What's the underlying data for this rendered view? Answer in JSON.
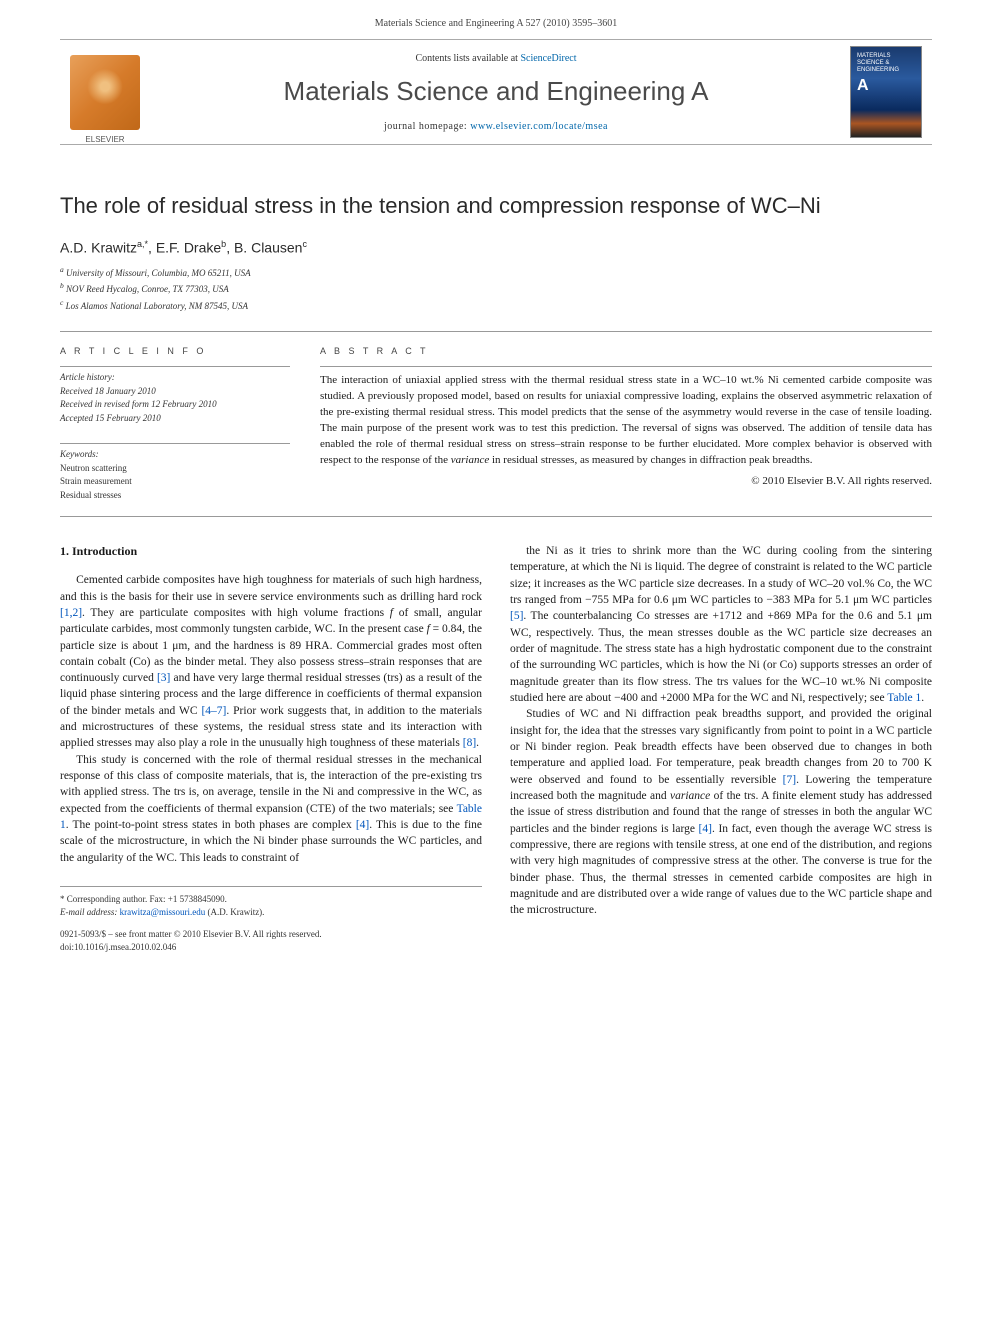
{
  "header": {
    "running_head": "Materials Science and Engineering A 527 (2010) 3595–3601",
    "contents_prefix": "Contents lists available at ",
    "contents_link": "ScienceDirect",
    "journal_name": "Materials Science and Engineering A",
    "homepage_prefix": "journal homepage: ",
    "homepage_url": "www.elsevier.com/locate/msea",
    "publisher_label": "ELSEVIER"
  },
  "article": {
    "title": "The role of residual stress in the tension and compression response of WC–Ni",
    "authors_html": "A.D. Krawitz",
    "author1": "A.D. Krawitz",
    "author1_sup": "a,*",
    "author2": "E.F. Drake",
    "author2_sup": "b",
    "author3": "B. Clausen",
    "author3_sup": "c",
    "affiliations": {
      "a": "University of Missouri, Columbia, MO 65211, USA",
      "b": "NOV Reed Hycalog, Conroe, TX 77303, USA",
      "c": "Los Alamos National Laboratory, NM 87545, USA"
    }
  },
  "info": {
    "heading": "A R T I C L E   I N F O",
    "history_label": "Article history:",
    "received": "Received 18 January 2010",
    "revised": "Received in revised form 12 February 2010",
    "accepted": "Accepted 15 February 2010",
    "keywords_label": "Keywords:",
    "keywords": [
      "Neutron scattering",
      "Strain measurement",
      "Residual stresses"
    ]
  },
  "abstract": {
    "heading": "A B S T R A C T",
    "text": "The interaction of uniaxial applied stress with the thermal residual stress state in a WC–10 wt.% Ni cemented carbide composite was studied. A previously proposed model, based on results for uniaxial compressive loading, explains the observed asymmetric relaxation of the pre-existing thermal residual stress. This model predicts that the sense of the asymmetry would reverse in the case of tensile loading. The main purpose of the present work was to test this prediction. The reversal of signs was observed. The addition of tensile data has enabled the role of thermal residual stress on stress–strain response to be further elucidated. More complex behavior is observed with respect to the response of the variance in residual stresses, as measured by changes in diffraction peak breadths.",
    "copyright": "© 2010 Elsevier B.V. All rights reserved."
  },
  "body": {
    "section1_heading": "1.  Introduction",
    "col1_p1": "Cemented carbide composites have high toughness for materials of such high hardness, and this is the basis for their use in severe service environments such as drilling hard rock [1,2]. They are particulate composites with high volume fractions f of small, angular particulate carbides, most commonly tungsten carbide, WC. In the present case f = 0.84, the particle size is about 1 μm, and the hardness is 89 HRA. Commercial grades most often contain cobalt (Co) as the binder metal. They also possess stress–strain responses that are continuously curved [3] and have very large thermal residual stresses (trs) as a result of the liquid phase sintering process and the large difference in coefficients of thermal expansion of the binder metals and WC [4–7]. Prior work suggests that, in addition to the materials and microstructures of these systems, the residual stress state and its interaction with applied stresses may also play a role in the unusually high toughness of these materials [8].",
    "col1_p2": "This study is concerned with the role of thermal residual stresses in the mechanical response of this class of composite materials, that is, the interaction of the pre-existing trs with applied stress. The trs is, on average, tensile in the Ni and compressive in the WC, as expected from the coefficients of thermal expansion (CTE) of the two materials; see Table 1. The point-to-point stress states in both phases are complex [4]. This is due to the fine scale of the microstructure, in which the Ni binder phase surrounds the WC particles, and the angularity of the WC. This leads to constraint of",
    "col2_p1": "the Ni as it tries to shrink more than the WC during cooling from the sintering temperature, at which the Ni is liquid. The degree of constraint is related to the WC particle size; it increases as the WC particle size decreases. In a study of WC–20 vol.% Co, the WC trs ranged from −755 MPa for 0.6 μm WC particles to −383 MPa for 5.1 μm WC particles [5]. The counterbalancing Co stresses are +1712 and +869 MPa for the 0.6 and 5.1 μm WC, respectively. Thus, the mean stresses double as the WC particle size decreases an order of magnitude. The stress state has a high hydrostatic component due to the constraint of the surrounding WC particles, which is how the Ni (or Co) supports stresses an order of magnitude greater than its flow stress. The trs values for the WC–10 wt.% Ni composite studied here are about −400 and +2000 MPa for the WC and Ni, respectively; see Table 1.",
    "col2_p2": "Studies of WC and Ni diffraction peak breadths support, and provided the original insight for, the idea that the stresses vary significantly from point to point in a WC particle or Ni binder region. Peak breadth effects have been observed due to changes in both temperature and applied load. For temperature, peak breadth changes from 20 to 700 K were observed and found to be essentially reversible [7]. Lowering the temperature increased both the magnitude and variance of the trs. A finite element study has addressed the issue of stress distribution and found that the range of stresses in both the angular WC particles and the binder regions is large [4]. In fact, even though the average WC stress is compressive, there are regions with tensile stress, at one end of the distribution, and regions with very high magnitudes of compressive stress at the other. The converse is true for the binder phase. Thus, the thermal stresses in cemented carbide composites are high in magnitude and are distributed over a wide range of values due to the WC particle shape and the microstructure."
  },
  "footer": {
    "corresponding": "* Corresponding author. Fax: +1 5738845090.",
    "email_label": "E-mail address:",
    "email": "krawitza@missouri.edu",
    "email_who": "(A.D. Krawitz).",
    "issn_line": "0921-5093/$ – see front matter © 2010 Elsevier B.V. All rights reserved.",
    "doi": "doi:10.1016/j.msea.2010.02.046"
  },
  "colors": {
    "link": "#0055bb",
    "text": "#1a1a1a",
    "rule": "#999999"
  }
}
